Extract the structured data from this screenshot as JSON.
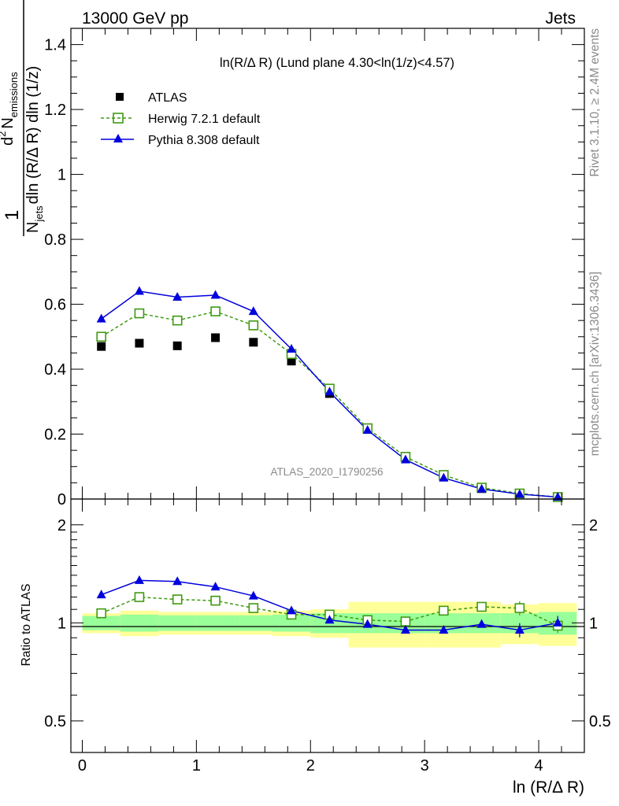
{
  "header": {
    "energy_label": "13000 GeV pp",
    "process_label": "Jets"
  },
  "side": {
    "rivet_label": "Rivet 3.1.10, ≥ 2.4M events",
    "mcplots_label": "mcplots.cern.ch [arXiv:1306.3436]"
  },
  "chart_data": [
    {
      "type": "scatter",
      "panel": "main",
      "title": "ln(R/Δ R) (Lund plane 4.30<ln(1/z)<4.57)",
      "ylabel_parts": {
        "one": "1",
        "d": "d",
        "two": "2",
        "n": "N",
        "emissions": "emissions",
        "njets_n": "N",
        "jets": "jets",
        "rest": "dln (R/Δ R) dln (1/z)"
      },
      "ylim": [
        0,
        1.45
      ],
      "yticks": [
        {
          "v": 0,
          "label": "0"
        },
        {
          "v": 0.2,
          "label": "0.2"
        },
        {
          "v": 0.4,
          "label": "0.4"
        },
        {
          "v": 0.6,
          "label": "0.6"
        },
        {
          "v": 0.8,
          "label": "0.8"
        },
        {
          "v": 1.0,
          "label": "1"
        },
        {
          "v": 1.2,
          "label": "1.2"
        },
        {
          "v": 1.4,
          "label": "1.4"
        }
      ],
      "watermark": "ATLAS_2020_I1790256",
      "legend": [
        "ATLAS",
        "Herwig 7.2.1 default",
        "Pythia 8.308 default"
      ],
      "x": [
        0.167,
        0.5,
        0.833,
        1.167,
        1.5,
        1.833,
        2.167,
        2.5,
        2.833,
        3.167,
        3.5,
        3.833,
        4.167
      ],
      "series": [
        {
          "name": "ATLAS",
          "color": "#000000",
          "values": [
            0.47,
            0.48,
            0.472,
            0.497,
            0.483,
            0.425,
            0.325,
            0.215,
            0.128,
            0.068,
            0.032,
            0.016,
            0.006
          ]
        },
        {
          "name": "Herwig 7.2.1 default",
          "color": "#3e9a10",
          "values": [
            0.5,
            0.572,
            0.55,
            0.578,
            0.535,
            0.447,
            0.34,
            0.218,
            0.13,
            0.074,
            0.035,
            0.017,
            0.006
          ]
        },
        {
          "name": "Pythia 8.308 default",
          "color": "#0000dd",
          "values": [
            0.555,
            0.64,
            0.622,
            0.628,
            0.578,
            0.462,
            0.33,
            0.212,
            0.121,
            0.065,
            0.031,
            0.015,
            0.006
          ]
        }
      ]
    },
    {
      "type": "line",
      "panel": "ratio",
      "ylabel": "Ratio to ATLAS",
      "xlabel": "ln (R/Δ R)",
      "xlim": [
        -0.1,
        4.4
      ],
      "ylim": [
        0.4,
        2.4
      ],
      "yticks": [
        {
          "v": 0.5,
          "label": "0.5"
        },
        {
          "v": 1,
          "label": "1"
        },
        {
          "v": 2,
          "label": "2"
        }
      ],
      "xticks": [
        {
          "v": 0,
          "label": "0"
        },
        {
          "v": 1,
          "label": "1"
        },
        {
          "v": 2,
          "label": "2"
        },
        {
          "v": 3,
          "label": "3"
        },
        {
          "v": 4,
          "label": "4"
        }
      ],
      "x": [
        0.167,
        0.5,
        0.833,
        1.167,
        1.5,
        1.833,
        2.167,
        2.5,
        2.833,
        3.167,
        3.5,
        3.833,
        4.167
      ],
      "bin_edges": [
        0,
        0.333,
        0.667,
        1.0,
        1.333,
        1.667,
        2.0,
        2.333,
        2.667,
        3.0,
        3.333,
        3.667,
        4.0,
        4.333
      ],
      "band_inner": [
        0.05,
        0.06,
        0.055,
        0.055,
        0.055,
        0.06,
        0.07,
        0.07,
        0.07,
        0.07,
        0.07,
        0.07,
        0.08
      ],
      "band_outer": [
        0.07,
        0.09,
        0.08,
        0.08,
        0.08,
        0.09,
        0.1,
        0.16,
        0.16,
        0.16,
        0.16,
        0.14,
        0.15
      ],
      "series": [
        {
          "name": "Herwig 7.2.1 default",
          "color": "#3e9a10",
          "values": [
            1.07,
            1.2,
            1.18,
            1.17,
            1.11,
            1.06,
            1.06,
            1.02,
            1.01,
            1.09,
            1.12,
            1.11,
            0.98
          ]
        },
        {
          "name": "Pythia 8.308 default",
          "color": "#0000dd",
          "values": [
            1.22,
            1.35,
            1.34,
            1.29,
            1.21,
            1.09,
            1.02,
            0.99,
            0.95,
            0.95,
            0.99,
            0.95,
            1.0
          ]
        }
      ]
    }
  ]
}
